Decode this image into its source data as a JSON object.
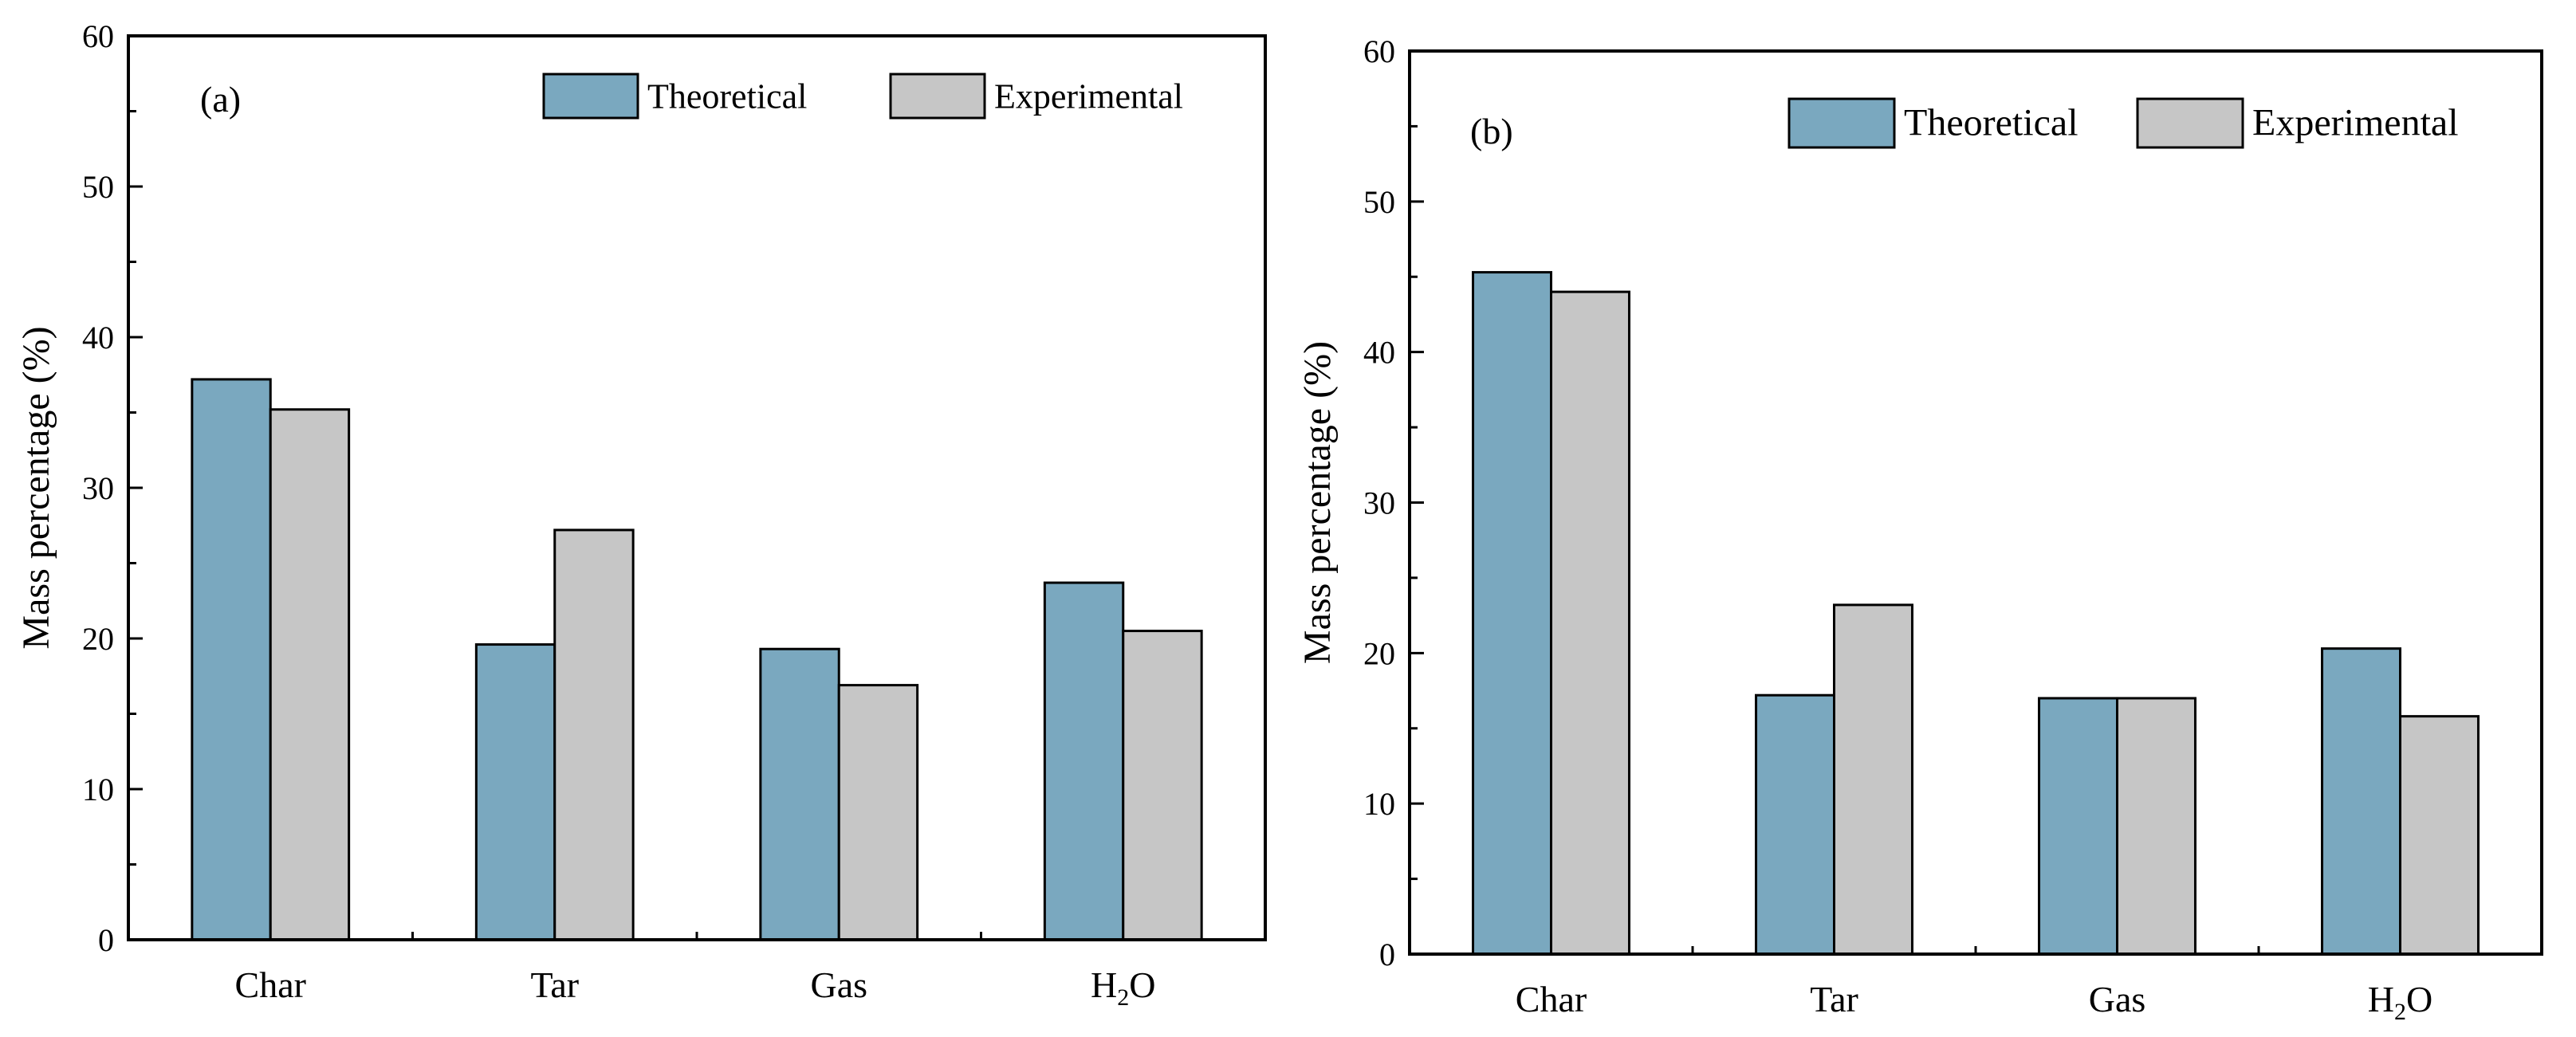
{
  "colors": {
    "theoretical": "#7aa8bf",
    "experimental": "#c6c6c6",
    "axis": "#000000"
  },
  "chart_data": [
    {
      "type": "bar",
      "panel_label": "(a)",
      "categories": [
        "Char",
        "Tar",
        "Gas",
        "H2O"
      ],
      "series": [
        {
          "name": "Theoretical",
          "values": [
            37.2,
            19.6,
            19.3,
            23.7
          ]
        },
        {
          "name": "Experimental",
          "values": [
            35.2,
            27.2,
            16.9,
            20.5
          ]
        }
      ],
      "ylabel": "Mass percentage (%)",
      "xlabel": "",
      "ylim": [
        0,
        60
      ],
      "yticks": [
        0,
        10,
        20,
        30,
        40,
        50,
        60
      ],
      "grid": false,
      "legend": "top-right"
    },
    {
      "type": "bar",
      "panel_label": "(b)",
      "categories": [
        "Char",
        "Tar",
        "Gas",
        "H2O"
      ],
      "series": [
        {
          "name": "Theoretical",
          "values": [
            45.3,
            17.2,
            17.0,
            20.3
          ]
        },
        {
          "name": "Experimental",
          "values": [
            44.0,
            23.2,
            17.0,
            15.8
          ]
        }
      ],
      "ylabel": "Mass percentage (%)",
      "xlabel": "",
      "ylim": [
        0,
        60
      ],
      "yticks": [
        0,
        10,
        20,
        30,
        40,
        50,
        60
      ],
      "grid": false,
      "legend": "top-right"
    }
  ]
}
